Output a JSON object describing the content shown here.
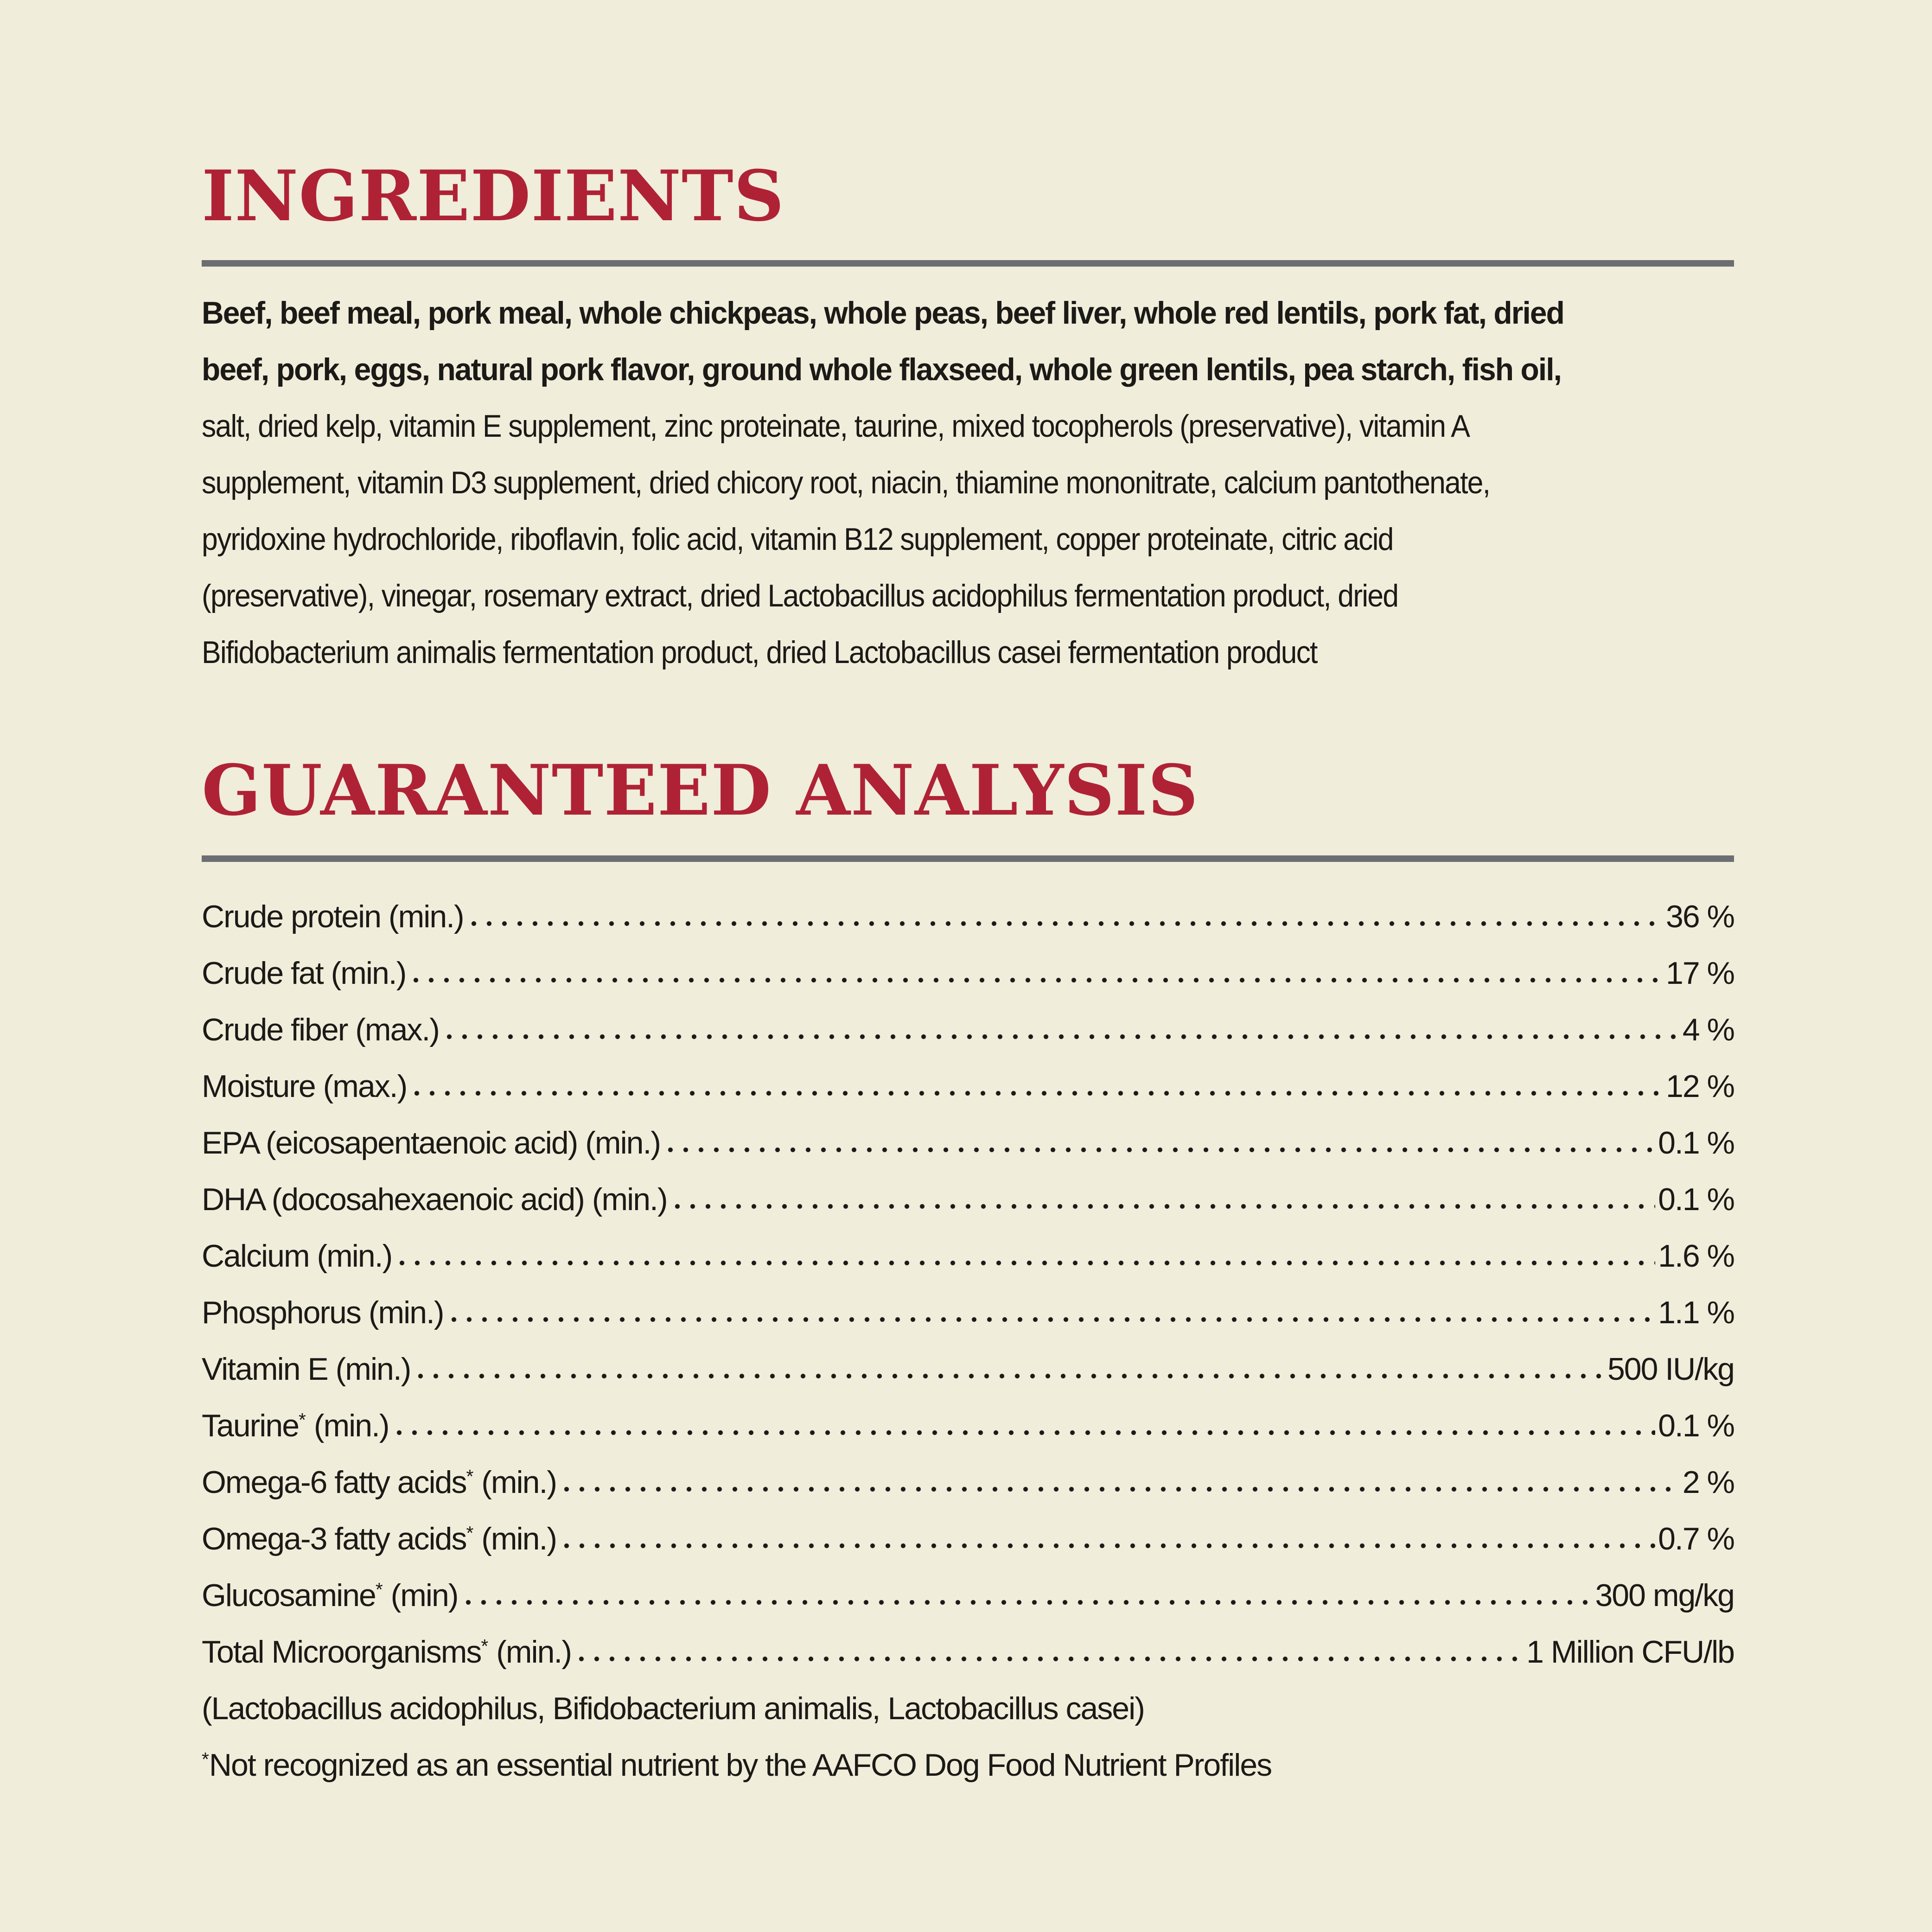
{
  "theme": {
    "background": "#F0EDDA",
    "accent_red": "#AF2236",
    "rule_gray": "#6D6E71",
    "text_color": "#1B1A17"
  },
  "ingredients": {
    "title": "INGREDIENTS",
    "bold_lines": [
      "Beef, beef meal, pork meal, whole chickpeas, whole peas, beef liver, whole red lentils, pork fat, dried",
      "beef, pork, eggs, natural pork flavor, ground whole flaxseed, whole green lentils, pea starch, fish oil,"
    ],
    "regular_lines": [
      "salt, dried kelp, vitamin E supplement, zinc proteinate, taurine, mixed tocopherols (preservative), vitamin A",
      "supplement, vitamin D3 supplement, dried chicory root, niacin, thiamine mononitrate, calcium pantothenate,",
      "pyridoxine hydrochloride, riboflavin, folic acid, vitamin B12 supplement, copper proteinate, citric acid",
      "(preservative), vinegar, rosemary extract, dried Lactobacillus acidophilus fermentation product, dried",
      "Bifidobacterium animalis fermentation product, dried Lactobacillus casei fermentation product"
    ]
  },
  "analysis": {
    "title": "GUARANTEED ANALYSIS",
    "rows": [
      {
        "name": "Crude protein",
        "star": false,
        "qualifier": "(min.)",
        "value": "36 %"
      },
      {
        "name": "Crude fat",
        "star": false,
        "qualifier": "(min.)",
        "value": "17 %"
      },
      {
        "name": "Crude fiber",
        "star": false,
        "qualifier": "(max.)",
        "value": "4 %"
      },
      {
        "name": "Moisture",
        "star": false,
        "qualifier": "(max.)",
        "value": "12 %"
      },
      {
        "name": "EPA (eicosapentaenoic acid)",
        "star": false,
        "qualifier": "(min.)",
        "value": "0.1 %"
      },
      {
        "name": "DHA (docosahexaenoic acid)",
        "star": false,
        "qualifier": "(min.)",
        "value": "0.1 %"
      },
      {
        "name": "Calcium",
        "star": false,
        "qualifier": "(min.)",
        "value": "1.6 %"
      },
      {
        "name": "Phosphorus",
        "star": false,
        "qualifier": "(min.)",
        "value": "1.1 %"
      },
      {
        "name": "Vitamin E",
        "star": false,
        "qualifier": "(min.)",
        "value": "500 IU/kg"
      },
      {
        "name": "Taurine",
        "star": true,
        "qualifier": "(min.)",
        "value": "0.1 %"
      },
      {
        "name": "Omega-6 fatty acids",
        "star": true,
        "qualifier": "(min.)",
        "value": "2 %"
      },
      {
        "name": "Omega-3 fatty acids",
        "star": true,
        "qualifier": "(min.)",
        "value": "0.7 %"
      },
      {
        "name": "Glucosamine",
        "star": true,
        "qualifier": "(min)",
        "value": "300 mg/kg"
      },
      {
        "name": "Total Microorganisms",
        "star": true,
        "qualifier": "(min.)",
        "value": "1 Million CFU/lb"
      }
    ],
    "continuation_line": "(Lactobacillus acidophilus, Bifidobacterium animalis, Lactobacillus casei)",
    "footnote_star": "*",
    "footnote_text": "Not recognized as an essential nutrient by the AAFCO Dog Food Nutrient Profiles"
  }
}
